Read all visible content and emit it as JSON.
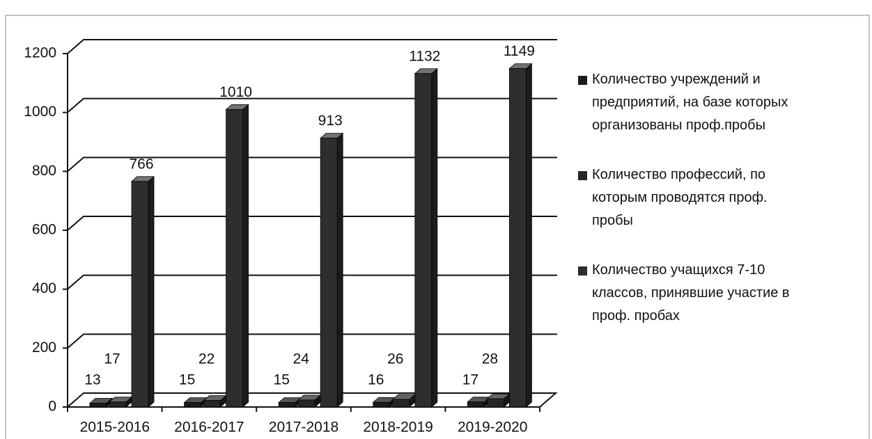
{
  "chart_data": {
    "type": "bar3d",
    "categories": [
      "2015-2016",
      "2016-2017",
      "2017-2018",
      "2018-2019",
      "2019-2020"
    ],
    "series": [
      {
        "name": "Количество учреждений и предприятий, на базе которых организованы проф.пробы",
        "color": "#1c1c1c",
        "values": [
          13,
          15,
          15,
          16,
          17
        ]
      },
      {
        "name": "Количество профессий, по которым проводятся проф. пробы",
        "color": "#262626",
        "values": [
          17,
          22,
          24,
          26,
          28
        ]
      },
      {
        "name": "Количество учащихся 7-10 классов, принявшие участие в проф. пробах",
        "color": "#2e2e2e",
        "values": [
          766,
          1010,
          913,
          1132,
          1149
        ]
      }
    ],
    "ylim": [
      0,
      1200
    ],
    "yticks": [
      0,
      200,
      400,
      600,
      800,
      1000,
      1200
    ],
    "grid": true,
    "legend": "right"
  }
}
